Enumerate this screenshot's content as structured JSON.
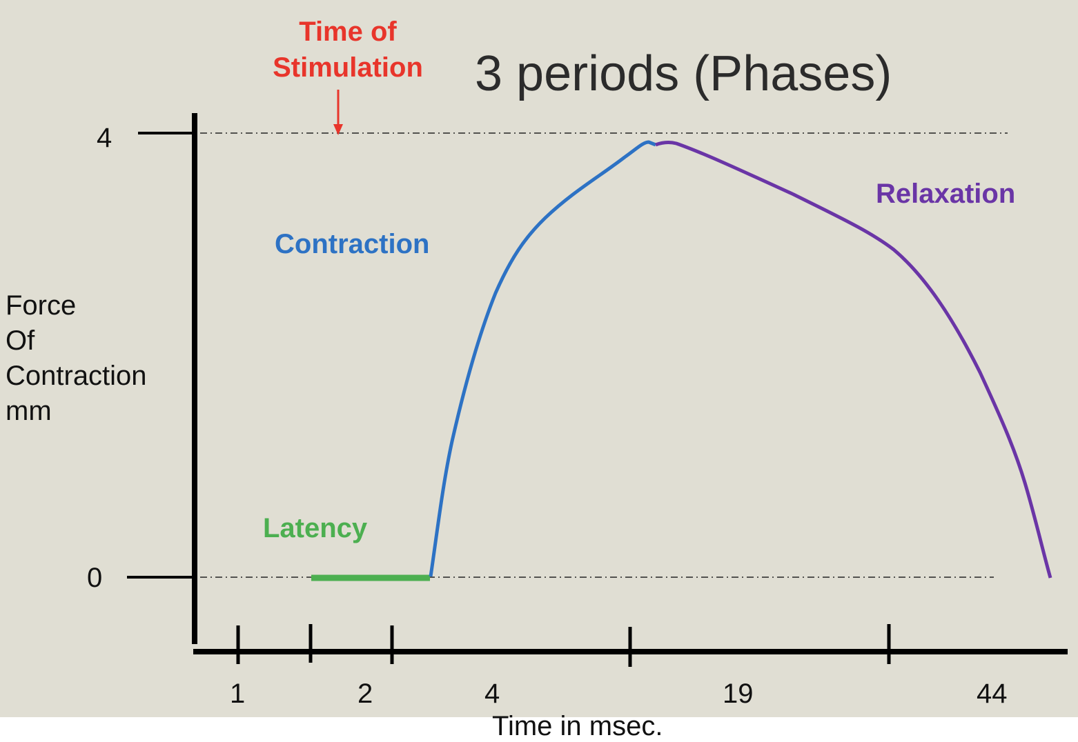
{
  "title": "3 periods (Phases)",
  "stimulation_label": [
    "Time of",
    "Stimulation"
  ],
  "y_axis": {
    "label_lines": [
      "Force",
      "Of",
      "Contraction",
      "mm"
    ],
    "ticks": [
      "4",
      "0"
    ]
  },
  "x_axis": {
    "label": "Time in msec.",
    "ticks": [
      "1",
      "2",
      "4",
      "19",
      "44"
    ]
  },
  "phases": {
    "latency": {
      "label": "Latency",
      "color": "#4caf50"
    },
    "contraction": {
      "label": "Contraction",
      "color": "#2d72c4"
    },
    "relaxation": {
      "label": "Relaxation",
      "color": "#6a35a6"
    }
  },
  "colors": {
    "background": "#e0ded3",
    "stimulation": "#e8352b"
  }
}
